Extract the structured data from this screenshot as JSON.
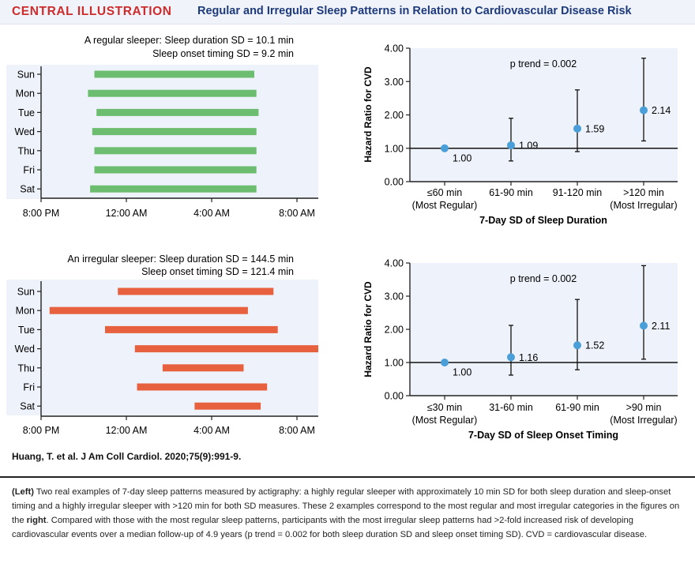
{
  "header": {
    "tag": "CENTRAL ILLUSTRATION",
    "title": "Regular and Irregular Sleep Patterns in Relation to Cardiovascular Disease Risk"
  },
  "colors": {
    "regular": "#6cbd6f",
    "irregular": "#e8613f",
    "point": "#4a9fd8",
    "panel_bg": "#eef2fa",
    "accent": "#cc2c2c",
    "title": "#1d3a7a"
  },
  "chart_data": [
    {
      "type": "gantt",
      "id": "regular_sleeper",
      "title_line1": "A regular sleeper: Sleep duration SD = 10.1 min",
      "title_line2": "Sleep onset timing SD = 9.2 min",
      "x_range_hours": [
        20,
        33
      ],
      "x_ticks": [
        {
          "h": 20,
          "label": "8:00 PM"
        },
        {
          "h": 24,
          "label": "12:00 AM"
        },
        {
          "h": 28,
          "label": "4:00 AM"
        },
        {
          "h": 32,
          "label": "8:00 AM"
        }
      ],
      "rows": [
        {
          "day": "Sun",
          "start": 22.5,
          "end": 30.0
        },
        {
          "day": "Mon",
          "start": 22.2,
          "end": 30.1
        },
        {
          "day": "Tue",
          "start": 22.6,
          "end": 30.2
        },
        {
          "day": "Wed",
          "start": 22.4,
          "end": 30.1
        },
        {
          "day": "Thu",
          "start": 22.5,
          "end": 30.1
        },
        {
          "day": "Fri",
          "start": 22.5,
          "end": 30.1
        },
        {
          "day": "Sat",
          "start": 22.3,
          "end": 30.1
        }
      ]
    },
    {
      "type": "scatter",
      "id": "hr_duration",
      "ylabel": "Hazard Ratio for CVD",
      "xlabel": "7-Day SD of Sleep Duration",
      "annotation": "p trend = 0.002",
      "ylim": [
        0,
        4
      ],
      "y_ticks": [
        "0.00",
        "1.00",
        "2.00",
        "3.00",
        "4.00"
      ],
      "reference_line": 1.0,
      "points": [
        {
          "label1": "≤60 min",
          "label2": "(Most Regular)",
          "hr": 1.0,
          "hr_label": "1.00",
          "lo": 1.0,
          "hi": 1.0
        },
        {
          "label1": "61-90 min",
          "label2": "",
          "hr": 1.09,
          "hr_label": "1.09",
          "lo": 0.62,
          "hi": 1.9
        },
        {
          "label1": "91-120 min",
          "label2": "",
          "hr": 1.59,
          "hr_label": "1.59",
          "lo": 0.9,
          "hi": 2.75
        },
        {
          "label1": ">120 min",
          "label2": "(Most Irregular)",
          "hr": 2.14,
          "hr_label": "2.14",
          "lo": 1.22,
          "hi": 3.7
        }
      ]
    },
    {
      "type": "gantt",
      "id": "irregular_sleeper",
      "title_line1": "An irregular sleeper: Sleep duration SD = 144.5 min",
      "title_line2": "Sleep onset timing SD = 121.4 min",
      "x_range_hours": [
        20,
        33
      ],
      "x_ticks": [
        {
          "h": 20,
          "label": "8:00 PM"
        },
        {
          "h": 24,
          "label": "12:00 AM"
        },
        {
          "h": 28,
          "label": "4:00 AM"
        },
        {
          "h": 32,
          "label": "8:00 AM"
        }
      ],
      "rows": [
        {
          "day": "Sun",
          "start": 23.6,
          "end": 30.9
        },
        {
          "day": "Mon",
          "start": 20.4,
          "end": 29.7
        },
        {
          "day": "Tue",
          "start": 23.0,
          "end": 31.1
        },
        {
          "day": "Wed",
          "start": 24.4,
          "end": 33.0
        },
        {
          "day": "Thu",
          "start": 25.7,
          "end": 29.5
        },
        {
          "day": "Fri",
          "start": 24.5,
          "end": 30.6
        },
        {
          "day": "Sat",
          "start": 27.2,
          "end": 30.3
        }
      ]
    },
    {
      "type": "scatter",
      "id": "hr_onset",
      "ylabel": "Hazard Ratio for CVD",
      "xlabel": "7-Day SD of Sleep Onset Timing",
      "annotation": "p trend = 0.002",
      "ylim": [
        0,
        4
      ],
      "y_ticks": [
        "0.00",
        "1.00",
        "2.00",
        "3.00",
        "4.00"
      ],
      "reference_line": 1.0,
      "points": [
        {
          "label1": "≤30 min",
          "label2": "(Most Regular)",
          "hr": 1.0,
          "hr_label": "1.00",
          "lo": 1.0,
          "hi": 1.0
        },
        {
          "label1": "31-60 min",
          "label2": "",
          "hr": 1.16,
          "hr_label": "1.16",
          "lo": 0.62,
          "hi": 2.12
        },
        {
          "label1": "61-90 min",
          "label2": "",
          "hr": 1.52,
          "hr_label": "1.52",
          "lo": 0.78,
          "hi": 2.9
        },
        {
          "label1": ">90 min",
          "label2": "(Most Irregular)",
          "hr": 2.11,
          "hr_label": "2.11",
          "lo": 1.1,
          "hi": 3.92
        }
      ]
    }
  ],
  "citation": "Huang, T. et al. J Am Coll Cardiol. 2020;75(9):991-9.",
  "caption": {
    "left_label": "(Left)",
    "text1": " Two real examples of 7-day sleep patterns measured by actigraphy: a highly regular sleeper with approximately 10 min SD for both sleep duration and sleep-onset timing and a highly irregular sleeper with >120 min for both SD measures. These 2 examples correspond to the most regular and most irregular categories in the figures on the ",
    "right_label": "right",
    "text2": ". Compared with those with the most regular sleep patterns, participants with the most irregular sleep patterns had >2-fold increased risk of developing cardiovascular events over a median follow-up of 4.9 years (p trend = 0.002 for both sleep duration SD and sleep onset timing SD). CVD = cardiovascular disease."
  }
}
